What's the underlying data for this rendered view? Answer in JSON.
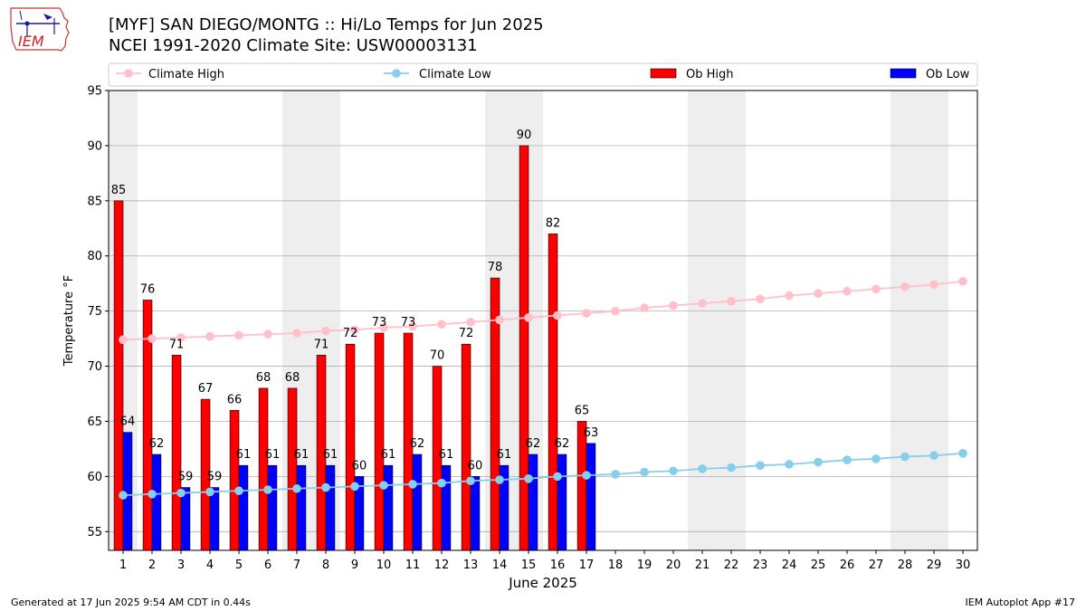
{
  "header": {
    "title_line1": "[MYF] SAN DIEGO/MONTG :: Hi/Lo Temps for Jun 2025",
    "title_line2": "NCEI 1991-2020 Climate Site: USW00003131",
    "logo_text": "IEM"
  },
  "footer": {
    "generated": "Generated at 17 Jun 2025 9:54 AM CDT in 0.44s",
    "app": "IEM Autoplot App #17"
  },
  "colors": {
    "climate_high": "#ffc0cb",
    "climate_low": "#87ceeb",
    "ob_high": "#ff0000",
    "ob_low": "#0000ff",
    "weekend_shade": "#eeeeee",
    "grid": "#b0b0b0"
  },
  "chart_data": {
    "type": "bar",
    "title": "[MYF] SAN DIEGO/MONTG :: Hi/Lo Temps for Jun 2025",
    "xlabel": "June 2025",
    "ylabel": "Temperature °F",
    "ylim": [
      53.3,
      95
    ],
    "yticks": [
      55,
      60,
      65,
      70,
      75,
      80,
      85,
      90,
      95
    ],
    "xlim": [
      0.5,
      30.5
    ],
    "grid": "horizontal",
    "legend_position": "top",
    "days": [
      1,
      2,
      3,
      4,
      5,
      6,
      7,
      8,
      9,
      10,
      11,
      12,
      13,
      14,
      15,
      16,
      17,
      18,
      19,
      20,
      21,
      22,
      23,
      24,
      25,
      26,
      27,
      28,
      29,
      30
    ],
    "shaded_day_ranges": [
      [
        1,
        1
      ],
      [
        7,
        8
      ],
      [
        14,
        15
      ],
      [
        21,
        22
      ],
      [
        28,
        29
      ]
    ],
    "series": [
      {
        "name": "Climate High",
        "kind": "line",
        "color": "#ffc0cb",
        "values": [
          72.4,
          72.5,
          72.6,
          72.7,
          72.8,
          72.9,
          73.0,
          73.2,
          73.3,
          73.5,
          73.6,
          73.8,
          74.0,
          74.2,
          74.4,
          74.6,
          74.8,
          75.0,
          75.3,
          75.5,
          75.7,
          75.9,
          76.1,
          76.4,
          76.6,
          76.8,
          77.0,
          77.2,
          77.4,
          77.7
        ]
      },
      {
        "name": "Climate Low",
        "kind": "line",
        "color": "#87ceeb",
        "values": [
          58.3,
          58.4,
          58.5,
          58.6,
          58.7,
          58.8,
          58.9,
          59.0,
          59.1,
          59.2,
          59.3,
          59.4,
          59.6,
          59.7,
          59.8,
          60.0,
          60.1,
          60.2,
          60.4,
          60.5,
          60.7,
          60.8,
          61.0,
          61.1,
          61.3,
          61.5,
          61.6,
          61.8,
          61.9,
          62.1
        ]
      },
      {
        "name": "Ob High",
        "kind": "bar",
        "color": "#ff0000",
        "values": [
          85,
          76,
          71,
          67,
          66,
          68,
          68,
          71,
          72,
          73,
          73,
          70,
          72,
          78,
          90,
          82,
          65
        ]
      },
      {
        "name": "Ob Low",
        "kind": "bar",
        "color": "#0000ff",
        "values": [
          64,
          62,
          59,
          59,
          61,
          61,
          61,
          61,
          60,
          61,
          62,
          61,
          60,
          61,
          62,
          62,
          63
        ]
      }
    ]
  }
}
